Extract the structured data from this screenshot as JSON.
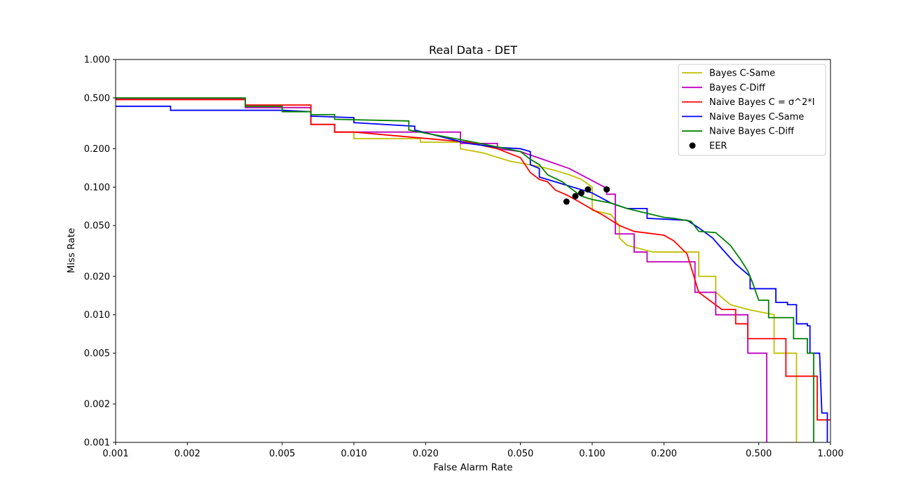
{
  "chart_data": {
    "type": "line",
    "title": "Real Data - DET",
    "xlabel": "False Alarm Rate",
    "ylabel": "Miss Rate",
    "xscale": "log",
    "yscale": "log",
    "xlim": [
      0.001,
      1.0
    ],
    "ylim": [
      0.001,
      1.0
    ],
    "xticks": [
      0.001,
      0.002,
      0.005,
      0.01,
      0.02,
      0.05,
      0.1,
      0.2,
      0.5,
      1.0
    ],
    "xticklabels": [
      "0.001",
      "0.002",
      "0.005",
      "0.010",
      "0.020",
      "0.050",
      "0.100",
      "0.200",
      "0.500",
      "1.000"
    ],
    "yticks": [
      0.001,
      0.002,
      0.005,
      0.01,
      0.02,
      0.05,
      0.1,
      0.2,
      0.5,
      1.0
    ],
    "yticklabels": [
      "0.001",
      "0.002",
      "0.005",
      "0.010",
      "0.020",
      "0.050",
      "0.100",
      "0.200",
      "0.500",
      "1.000"
    ],
    "legend_position": "upper right",
    "grid": false,
    "series": [
      {
        "name": "Bayes C-Same",
        "color": "#bfbf00",
        "points": [
          [
            0.001,
            0.49
          ],
          [
            0.0035,
            0.49
          ],
          [
            0.0035,
            0.42
          ],
          [
            0.0066,
            0.42
          ],
          [
            0.0066,
            0.31
          ],
          [
            0.0083,
            0.31
          ],
          [
            0.0083,
            0.27
          ],
          [
            0.01,
            0.27
          ],
          [
            0.01,
            0.24
          ],
          [
            0.019,
            0.24
          ],
          [
            0.019,
            0.225
          ],
          [
            0.028,
            0.225
          ],
          [
            0.028,
            0.2
          ],
          [
            0.035,
            0.185
          ],
          [
            0.045,
            0.16
          ],
          [
            0.06,
            0.145
          ],
          [
            0.07,
            0.135
          ],
          [
            0.08,
            0.125
          ],
          [
            0.09,
            0.115
          ],
          [
            0.1,
            0.1
          ],
          [
            0.1,
            0.066
          ],
          [
            0.12,
            0.061
          ],
          [
            0.13,
            0.05
          ],
          [
            0.13,
            0.04
          ],
          [
            0.14,
            0.035
          ],
          [
            0.18,
            0.031
          ],
          [
            0.28,
            0.031
          ],
          [
            0.28,
            0.02
          ],
          [
            0.33,
            0.02
          ],
          [
            0.33,
            0.015
          ],
          [
            0.38,
            0.012
          ],
          [
            0.45,
            0.011
          ],
          [
            0.58,
            0.01
          ],
          [
            0.58,
            0.005
          ],
          [
            0.72,
            0.005
          ],
          [
            0.72,
            0.001
          ]
        ]
      },
      {
        "name": "Bayes C-Diff",
        "color": "#bf00bf",
        "points": [
          [
            0.001,
            0.49
          ],
          [
            0.0035,
            0.49
          ],
          [
            0.0035,
            0.42
          ],
          [
            0.0066,
            0.42
          ],
          [
            0.0066,
            0.31
          ],
          [
            0.0083,
            0.31
          ],
          [
            0.0083,
            0.27
          ],
          [
            0.028,
            0.27
          ],
          [
            0.028,
            0.22
          ],
          [
            0.04,
            0.22
          ],
          [
            0.04,
            0.2
          ],
          [
            0.05,
            0.19
          ],
          [
            0.08,
            0.14
          ],
          [
            0.115,
            0.098
          ],
          [
            0.115,
            0.088
          ],
          [
            0.125,
            0.088
          ],
          [
            0.125,
            0.043
          ],
          [
            0.15,
            0.043
          ],
          [
            0.15,
            0.031
          ],
          [
            0.17,
            0.031
          ],
          [
            0.17,
            0.026
          ],
          [
            0.27,
            0.026
          ],
          [
            0.27,
            0.015
          ],
          [
            0.33,
            0.015
          ],
          [
            0.33,
            0.01
          ],
          [
            0.45,
            0.01
          ],
          [
            0.45,
            0.005
          ],
          [
            0.54,
            0.005
          ],
          [
            0.54,
            0.001
          ]
        ]
      },
      {
        "name": "Naive Bayes C = σ^2*I",
        "color": "#ff0000",
        "points": [
          [
            0.001,
            0.485
          ],
          [
            0.0035,
            0.485
          ],
          [
            0.0035,
            0.44
          ],
          [
            0.0066,
            0.44
          ],
          [
            0.0066,
            0.31
          ],
          [
            0.0083,
            0.31
          ],
          [
            0.0083,
            0.27
          ],
          [
            0.01,
            0.27
          ],
          [
            0.03,
            0.225
          ],
          [
            0.04,
            0.2
          ],
          [
            0.05,
            0.17
          ],
          [
            0.055,
            0.13
          ],
          [
            0.06,
            0.115
          ],
          [
            0.065,
            0.11
          ],
          [
            0.07,
            0.095
          ],
          [
            0.08,
            0.085
          ],
          [
            0.09,
            0.075
          ],
          [
            0.1,
            0.067
          ],
          [
            0.11,
            0.061
          ],
          [
            0.12,
            0.055
          ],
          [
            0.13,
            0.05
          ],
          [
            0.15,
            0.045
          ],
          [
            0.2,
            0.042
          ],
          [
            0.22,
            0.038
          ],
          [
            0.25,
            0.03
          ],
          [
            0.28,
            0.015
          ],
          [
            0.35,
            0.011
          ],
          [
            0.4,
            0.011
          ],
          [
            0.4,
            0.0085
          ],
          [
            0.45,
            0.0085
          ],
          [
            0.45,
            0.0065
          ],
          [
            0.65,
            0.0065
          ],
          [
            0.65,
            0.0033
          ],
          [
            0.88,
            0.0033
          ],
          [
            0.88,
            0.0015
          ],
          [
            1.0,
            0.0015
          ]
        ]
      },
      {
        "name": "Naive Bayes C-Same",
        "color": "#0000ff",
        "points": [
          [
            0.001,
            0.43
          ],
          [
            0.0017,
            0.43
          ],
          [
            0.0017,
            0.4
          ],
          [
            0.005,
            0.4
          ],
          [
            0.0066,
            0.39
          ],
          [
            0.0066,
            0.36
          ],
          [
            0.01,
            0.35
          ],
          [
            0.01,
            0.32
          ],
          [
            0.018,
            0.3
          ],
          [
            0.018,
            0.28
          ],
          [
            0.025,
            0.24
          ],
          [
            0.03,
            0.22
          ],
          [
            0.04,
            0.205
          ],
          [
            0.05,
            0.2
          ],
          [
            0.055,
            0.19
          ],
          [
            0.055,
            0.15
          ],
          [
            0.06,
            0.14
          ],
          [
            0.06,
            0.12
          ],
          [
            0.07,
            0.11
          ],
          [
            0.1,
            0.09
          ],
          [
            0.12,
            0.075
          ],
          [
            0.14,
            0.068
          ],
          [
            0.17,
            0.068
          ],
          [
            0.17,
            0.057
          ],
          [
            0.25,
            0.055
          ],
          [
            0.28,
            0.048
          ],
          [
            0.32,
            0.04
          ],
          [
            0.35,
            0.033
          ],
          [
            0.4,
            0.025
          ],
          [
            0.46,
            0.02
          ],
          [
            0.46,
            0.016
          ],
          [
            0.59,
            0.016
          ],
          [
            0.59,
            0.0125
          ],
          [
            0.66,
            0.0125
          ],
          [
            0.66,
            0.012
          ],
          [
            0.72,
            0.012
          ],
          [
            0.72,
            0.0085
          ],
          [
            0.8,
            0.0085
          ],
          [
            0.8,
            0.0082
          ],
          [
            0.82,
            0.0082
          ],
          [
            0.82,
            0.005
          ],
          [
            0.9,
            0.005
          ],
          [
            0.92,
            0.0017
          ],
          [
            0.97,
            0.0017
          ],
          [
            0.97,
            0.001
          ]
        ]
      },
      {
        "name": "Naive Bayes C-Diff",
        "color": "#008000",
        "points": [
          [
            0.001,
            0.5
          ],
          [
            0.0035,
            0.5
          ],
          [
            0.0035,
            0.43
          ],
          [
            0.005,
            0.43
          ],
          [
            0.005,
            0.39
          ],
          [
            0.0066,
            0.39
          ],
          [
            0.0066,
            0.37
          ],
          [
            0.0083,
            0.37
          ],
          [
            0.0083,
            0.34
          ],
          [
            0.017,
            0.33
          ],
          [
            0.017,
            0.28
          ],
          [
            0.03,
            0.23
          ],
          [
            0.05,
            0.19
          ],
          [
            0.055,
            0.165
          ],
          [
            0.06,
            0.15
          ],
          [
            0.065,
            0.125
          ],
          [
            0.075,
            0.11
          ],
          [
            0.08,
            0.1
          ],
          [
            0.09,
            0.085
          ],
          [
            0.1,
            0.08
          ],
          [
            0.12,
            0.075
          ],
          [
            0.14,
            0.068
          ],
          [
            0.2,
            0.058
          ],
          [
            0.22,
            0.057
          ],
          [
            0.26,
            0.054
          ],
          [
            0.28,
            0.045
          ],
          [
            0.33,
            0.044
          ],
          [
            0.38,
            0.035
          ],
          [
            0.42,
            0.027
          ],
          [
            0.45,
            0.022
          ],
          [
            0.47,
            0.018
          ],
          [
            0.5,
            0.013
          ],
          [
            0.55,
            0.013
          ],
          [
            0.55,
            0.0095
          ],
          [
            0.7,
            0.0095
          ],
          [
            0.7,
            0.0065
          ],
          [
            0.8,
            0.0065
          ],
          [
            0.8,
            0.005
          ],
          [
            0.85,
            0.005
          ],
          [
            0.85,
            0.001
          ]
        ]
      },
      {
        "name": "EER",
        "color": "#000000",
        "marker": "circle",
        "points": [
          [
            0.078,
            0.077
          ],
          [
            0.085,
            0.085
          ],
          [
            0.09,
            0.09
          ],
          [
            0.096,
            0.096
          ],
          [
            0.115,
            0.096
          ]
        ]
      }
    ]
  }
}
